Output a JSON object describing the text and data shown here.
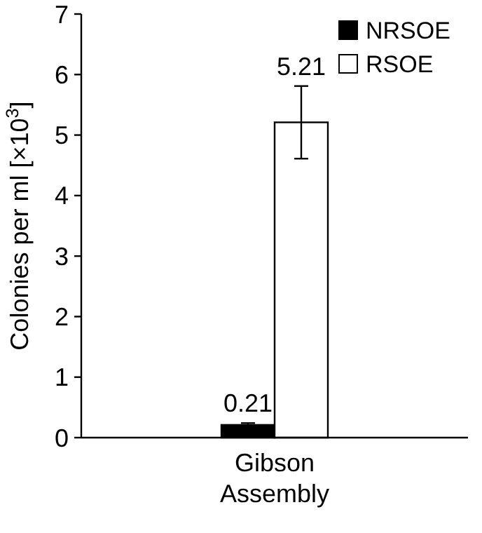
{
  "chart_data": {
    "type": "bar",
    "categories": [
      "Gibson Assembly"
    ],
    "series": [
      {
        "name": "NRSOE",
        "color": "#000000",
        "values": [
          0.21
        ],
        "errors": [
          0.03
        ]
      },
      {
        "name": "RSOE",
        "color": "#ffffff",
        "values": [
          5.21
        ],
        "errors": [
          0.6
        ]
      }
    ],
    "ylabel": "Colonies per ml [×10$^{3}$]",
    "ylim": [
      0,
      7
    ],
    "yticks": [
      0,
      1,
      2,
      3,
      4,
      5,
      6,
      7
    ],
    "data_labels": true,
    "legend": "top right",
    "grid": false
  }
}
